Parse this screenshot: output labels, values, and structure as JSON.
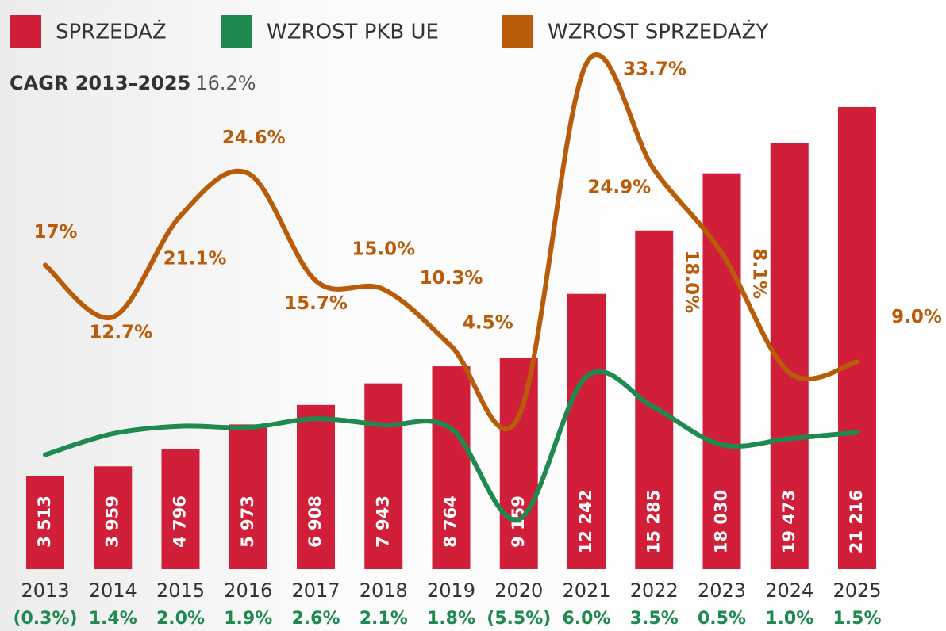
{
  "chart_data": {
    "type": "bar-line",
    "annotation_label": "CAGR 2013–2025",
    "annotation_value": "16.2%",
    "categories": [
      "2013",
      "2014",
      "2015",
      "2016",
      "2017",
      "2018",
      "2019",
      "2020",
      "2021",
      "2022",
      "2023",
      "2024",
      "2025"
    ],
    "series": [
      {
        "name": "SPRZEDAŻ",
        "type": "bar",
        "color": "#d11f3a",
        "values": [
          3513,
          3959,
          4796,
          5973,
          6908,
          7943,
          8764,
          9159,
          12242,
          15285,
          18030,
          19473,
          21216
        ],
        "value_labels": [
          "3 513",
          "3 959",
          "4 796",
          "5 973",
          "6 908",
          "7 943",
          "8 764",
          "9 159",
          "12 242",
          "15 285",
          "18 030",
          "19 473",
          "21 216"
        ]
      },
      {
        "name": "WZROST PKB UE",
        "type": "line",
        "color": "#1e8a4f",
        "values": [
          -0.3,
          1.4,
          2.0,
          1.9,
          2.6,
          2.1,
          1.8,
          -5.5,
          6.0,
          3.5,
          0.5,
          1.0,
          1.5
        ],
        "value_labels": [
          "(0.3%)",
          "1.4%",
          "2.0%",
          "1.9%",
          "2.6%",
          "2.1%",
          "1.8%",
          "(5.5%)",
          "6.0%",
          "3.5%",
          "0.5%",
          "1.0%",
          "1.5%"
        ]
      },
      {
        "name": "WZROST SPRZEDAŻY",
        "type": "line",
        "color": "#b85c0a",
        "values": [
          17,
          12.7,
          21.1,
          24.6,
          15.7,
          15.0,
          10.3,
          4.5,
          33.7,
          24.9,
          18.0,
          8.1,
          9.0
        ],
        "value_labels": [
          "17%",
          "12.7%",
          "21.1%",
          "24.6%",
          "15.7%",
          "15.0%",
          "10.3%",
          "4.5%",
          "33.7%",
          "24.9%",
          "18.0%",
          "8.1%",
          "9.0%"
        ]
      }
    ]
  }
}
